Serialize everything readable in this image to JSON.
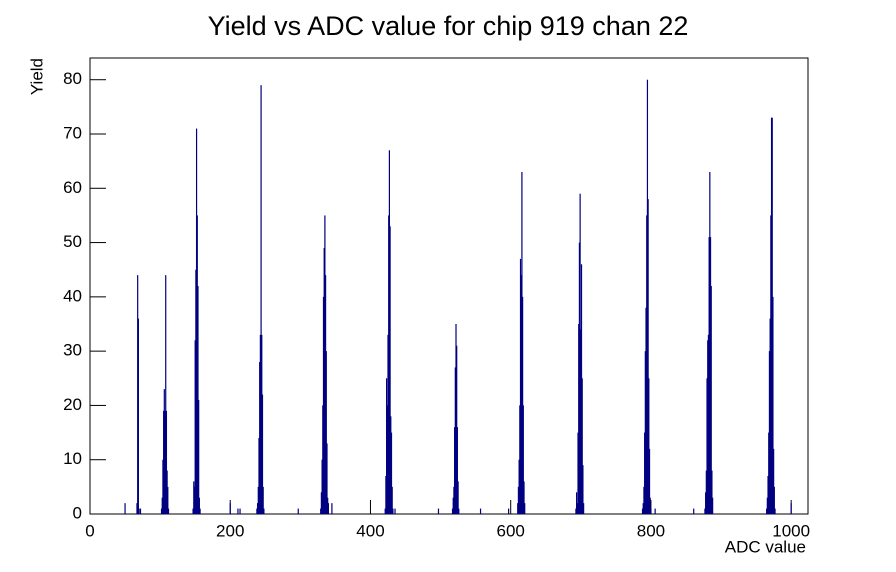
{
  "chart_data": {
    "type": "bar",
    "title": "Yield vs ADC value for chip 919 chan 22",
    "x_label": "ADC value",
    "y_label": "Yield",
    "color": "#000080",
    "xlim": [
      0,
      1024
    ],
    "ylim": [
      0,
      84
    ],
    "xticks": [
      0,
      200,
      400,
      600,
      800,
      1000
    ],
    "yticks": [
      0,
      10,
      20,
      30,
      40,
      50,
      60,
      70,
      80
    ],
    "grid": false,
    "x": [
      50,
      67,
      68,
      69,
      70,
      72,
      102,
      103,
      104,
      105,
      106,
      107,
      108,
      109,
      110,
      111,
      112,
      147,
      148,
      149,
      150,
      151,
      152,
      153,
      154,
      155,
      156,
      157,
      200,
      211,
      214,
      238,
      239,
      240,
      241,
      242,
      243,
      244,
      245,
      246,
      247,
      248,
      297,
      329,
      330,
      331,
      332,
      333,
      334,
      335,
      336,
      337,
      338,
      339,
      340,
      345,
      421,
      422,
      423,
      424,
      425,
      426,
      427,
      428,
      429,
      430,
      431,
      432,
      435,
      497,
      517,
      518,
      519,
      520,
      521,
      522,
      523,
      524,
      525,
      526,
      557,
      597,
      610,
      611,
      612,
      613,
      614,
      615,
      616,
      617,
      618,
      619,
      620,
      693,
      694,
      695,
      696,
      697,
      698,
      699,
      700,
      701,
      702,
      703,
      704,
      788,
      789,
      790,
      791,
      792,
      793,
      794,
      795,
      796,
      797,
      798,
      799,
      800,
      806,
      861,
      877,
      878,
      879,
      880,
      881,
      882,
      883,
      884,
      885,
      886,
      887,
      888,
      965,
      966,
      967,
      968,
      969,
      970,
      971,
      972,
      973,
      974,
      975,
      976,
      977,
      1000
    ],
    "values": [
      2,
      2,
      44,
      36,
      1,
      1,
      1,
      3,
      10,
      19,
      23,
      19,
      44,
      19,
      8,
      5,
      1,
      1,
      6,
      5,
      32,
      45,
      71,
      55,
      42,
      21,
      3,
      1,
      2,
      1,
      1,
      1,
      2,
      5,
      14,
      28,
      33,
      79,
      33,
      22,
      5,
      1,
      1,
      1,
      4,
      10,
      20,
      40,
      49,
      55,
      44,
      30,
      13,
      3,
      2,
      2,
      1,
      7,
      25,
      20,
      33,
      55,
      67,
      53,
      18,
      15,
      5,
      1,
      1,
      1,
      1,
      3,
      5,
      16,
      27,
      35,
      31,
      16,
      6,
      1,
      1,
      1,
      2,
      5,
      10,
      20,
      47,
      44,
      63,
      40,
      20,
      6,
      2,
      1,
      4,
      2,
      15,
      35,
      50,
      59,
      34,
      46,
      25,
      9,
      2,
      1,
      2,
      5,
      15,
      30,
      38,
      55,
      80,
      58,
      25,
      12,
      3,
      1,
      1,
      1,
      1,
      4,
      8,
      25,
      32,
      33,
      51,
      63,
      51,
      42,
      8,
      3,
      1,
      3,
      7,
      15,
      30,
      36,
      55,
      73,
      73,
      40,
      12,
      5,
      1,
      2
    ]
  }
}
